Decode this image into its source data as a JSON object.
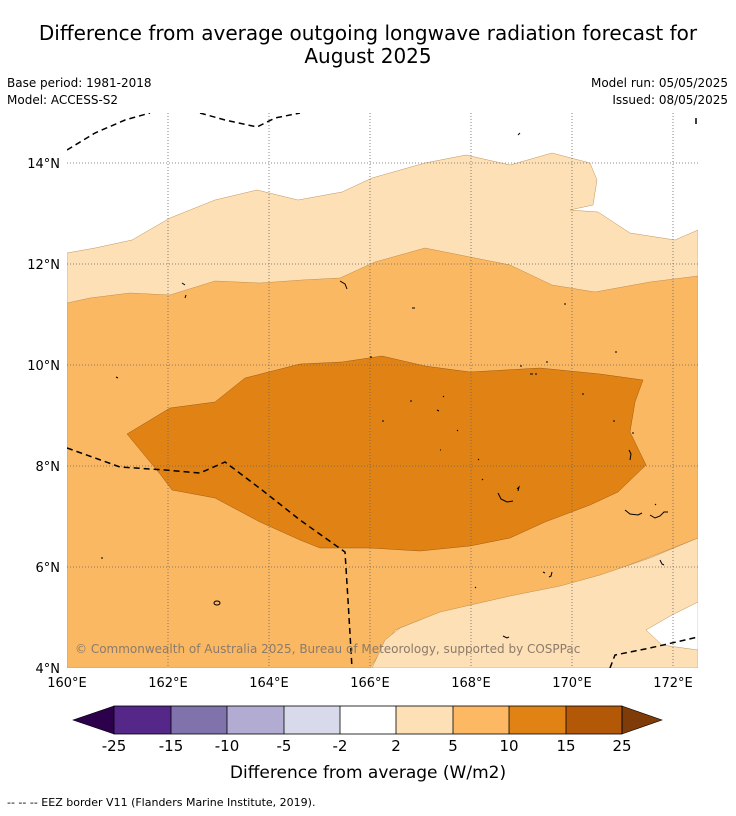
{
  "title_line1": "Difference from average outgoing longwave radiation forecast for",
  "title_line2": "August 2025",
  "meta": {
    "base_period": "Base period: 1981-2018",
    "model": "Model: ACCESS-S2",
    "model_run": "Model run: 05/05/2025",
    "issued": "Issued: 08/05/2025"
  },
  "map": {
    "lat_labels": [
      "14°N",
      "12°N",
      "10°N",
      "8°N",
      "6°N",
      "4°N"
    ],
    "lon_labels": [
      "160°E",
      "162°E",
      "164°E",
      "166°E",
      "168°E",
      "170°E",
      "172°E"
    ],
    "copyright": "© Commonwealth of Australia 2025, Bureau of Meteorology, supported by COSPPac",
    "colors": {
      "band_2_5": "#fde0b6",
      "band_5_10": "#fbb863",
      "band_10_15": "#e08214"
    }
  },
  "colorbar": {
    "label": "Difference from average (W/m2)",
    "ticks": [
      "-25",
      "-15",
      "-10",
      "-5",
      "-2",
      "2",
      "5",
      "10",
      "15",
      "25"
    ],
    "colors": [
      "#2d004b",
      "#542788",
      "#8073ac",
      "#b2abd2",
      "#d8daeb",
      "#ffffff",
      "#fee0b6",
      "#fdb863",
      "#e08214",
      "#b35806",
      "#7f3b08"
    ]
  },
  "footer": "--  --  -- EEZ border V11 (Flanders Marine Institute, 2019)."
}
